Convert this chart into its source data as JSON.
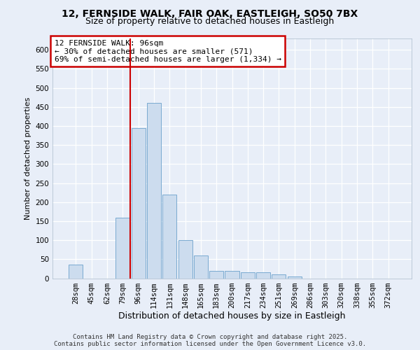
{
  "title1": "12, FERNSIDE WALK, FAIR OAK, EASTLEIGH, SO50 7BX",
  "title2": "Size of property relative to detached houses in Eastleigh",
  "xlabel": "Distribution of detached houses by size in Eastleigh",
  "ylabel": "Number of detached properties",
  "categories": [
    "28sqm",
    "45sqm",
    "62sqm",
    "79sqm",
    "96sqm",
    "114sqm",
    "131sqm",
    "148sqm",
    "165sqm",
    "183sqm",
    "200sqm",
    "217sqm",
    "234sqm",
    "251sqm",
    "269sqm",
    "286sqm",
    "303sqm",
    "320sqm",
    "338sqm",
    "355sqm",
    "372sqm"
  ],
  "values": [
    35,
    0,
    0,
    160,
    395,
    460,
    220,
    100,
    60,
    20,
    20,
    15,
    15,
    10,
    5,
    0,
    0,
    0,
    0,
    0,
    0
  ],
  "bar_color": "#ccdcee",
  "bar_edge_color": "#7aaad0",
  "vline_color": "#cc0000",
  "vline_index": 4,
  "annotation_text": "12 FERNSIDE WALK: 96sqm\n← 30% of detached houses are smaller (571)\n69% of semi-detached houses are larger (1,334) →",
  "annotation_box_color": "#ffffff",
  "annotation_box_edge": "#cc0000",
  "ylim": [
    0,
    630
  ],
  "yticks": [
    0,
    50,
    100,
    150,
    200,
    250,
    300,
    350,
    400,
    450,
    500,
    550,
    600
  ],
  "footer_line1": "Contains HM Land Registry data © Crown copyright and database right 2025.",
  "footer_line2": "Contains public sector information licensed under the Open Government Licence v3.0.",
  "bg_color": "#e8eef8",
  "plot_bg_color": "#e8eef8",
  "grid_color": "#ffffff",
  "title1_fontsize": 10,
  "title2_fontsize": 9,
  "xlabel_fontsize": 9,
  "ylabel_fontsize": 8,
  "tick_fontsize": 7.5,
  "ann_fontsize": 8
}
